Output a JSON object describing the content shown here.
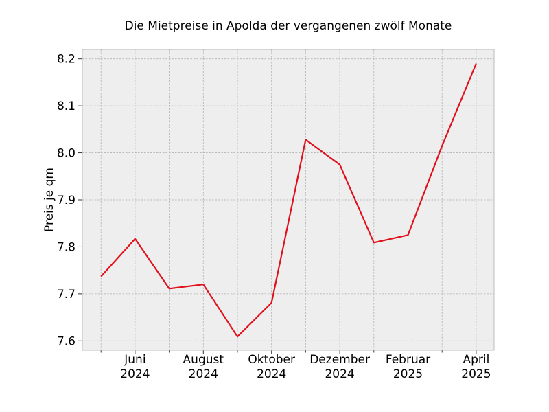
{
  "chart_data": {
    "type": "line",
    "title": "Die Mietpreise in Apolda der vergangenen zwölf Monate",
    "xlabel": "",
    "ylabel": "Preis je qm",
    "ylim": [
      7.58,
      8.22
    ],
    "yticks": [
      7.6,
      7.7,
      7.8,
      7.9,
      8.0,
      8.1,
      8.2
    ],
    "x": [
      "2024-05",
      "2024-06",
      "2024-07",
      "2024-08",
      "2024-09",
      "2024-10",
      "2024-11",
      "2024-12",
      "2025-01",
      "2025-02",
      "2025-03",
      "2025-04"
    ],
    "xtick_labels": [
      {
        "month": "Juni",
        "year": "2024"
      },
      {
        "month": "August",
        "year": "2024"
      },
      {
        "month": "Oktober",
        "year": "2024"
      },
      {
        "month": "Dezember",
        "year": "2024"
      },
      {
        "month": "Februar",
        "year": "2025"
      },
      {
        "month": "April",
        "year": "2025"
      }
    ],
    "series": [
      {
        "values": [
          7.737,
          7.817,
          7.711,
          7.72,
          7.609,
          7.681,
          8.028,
          7.975,
          7.809,
          7.825,
          8.015,
          8.19
        ]
      }
    ],
    "grid": true,
    "line_color": "#e0101c",
    "background_color": "#eeeeee",
    "grid_color": "#b0b0b0"
  }
}
